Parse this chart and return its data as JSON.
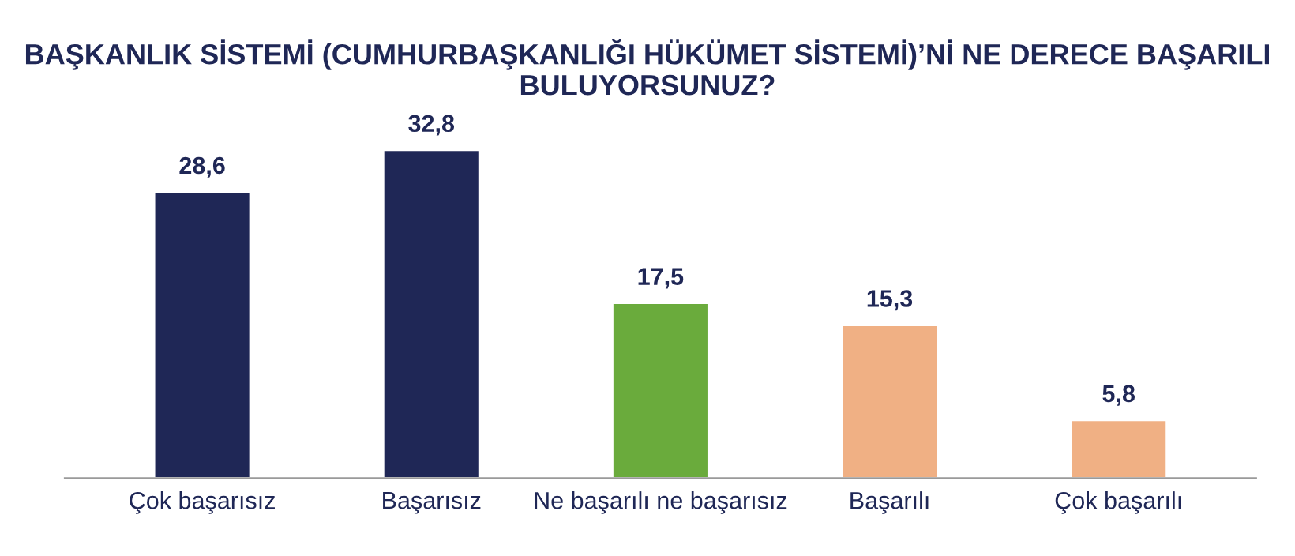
{
  "chart_data": {
    "type": "bar",
    "title": "BAŞKANLIK SİSTEMİ (CUMHURBAŞKANLIĞI HÜKÜMET SİSTEMİ)’Nİ NE DERECE BAŞARILI BULUYORSUNUZ?",
    "categories": [
      "Çok başarısız",
      "Başarısız",
      "Ne başarılı ne başarısız",
      "Başarılı",
      "Çok başarılı"
    ],
    "values": [
      28.6,
      32.8,
      17.5,
      15.3,
      5.8
    ],
    "colors": [
      "#1f2756",
      "#1f2756",
      "#6aab3c",
      "#f0b084",
      "#f0b084"
    ],
    "value_labels": [
      "28,6",
      "32,8",
      "17,5",
      "15,3",
      "5,8"
    ],
    "grid": false,
    "legend": false
  }
}
